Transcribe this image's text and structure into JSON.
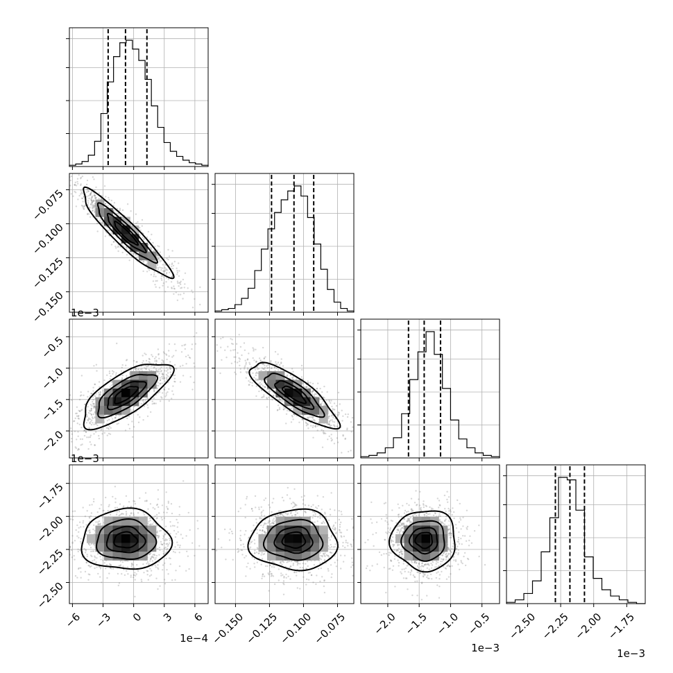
{
  "chart_data": {
    "type": "corner",
    "n_params": 4,
    "grid": true,
    "parameters": [
      {
        "range": [
          -0.00063,
          0.00073
        ],
        "ticks": [
          -0.0006,
          -0.0003,
          0,
          0.0003,
          0.0006
        ],
        "tick_labels": [
          "−6",
          "−3",
          "0",
          "3",
          "6"
        ],
        "offset_text": "1e−4",
        "mean": -8e-05,
        "sd": 0.00021,
        "quantiles": [
          -0.00025,
          -8e-05,
          0.00013
        ],
        "hist": [
          1,
          2,
          4,
          9,
          20,
          42,
          67,
          87,
          98,
          100,
          93,
          84,
          69,
          48,
          31,
          19,
          12,
          8,
          5,
          3,
          2,
          1
        ]
      },
      {
        "range": [
          -0.165,
          -0.063
        ],
        "ticks": [
          -0.15,
          -0.125,
          -0.1,
          -0.075
        ],
        "tick_labels": [
          "−0.150",
          "−0.125",
          "−0.100",
          "−0.075"
        ],
        "offset_text": "",
        "mean": -0.107,
        "sd": 0.0155,
        "quantiles": [
          -0.1235,
          -0.107,
          -0.0925
        ],
        "hist": [
          1,
          2,
          3,
          6,
          11,
          19,
          33,
          50,
          66,
          79,
          89,
          96,
          100,
          92,
          75,
          54,
          34,
          18,
          8,
          3,
          1
        ]
      },
      {
        "range": [
          -0.00243,
          -0.00022
        ],
        "ticks": [
          -0.002,
          -0.0015,
          -0.001,
          -0.0005
        ],
        "tick_labels": [
          "−2.0",
          "−1.5",
          "−1.0",
          "−0.5"
        ],
        "offset_text": "1e−3",
        "mean": -0.00142,
        "sd": 0.00025,
        "quantiles": [
          -0.00167,
          -0.00142,
          -0.00116
        ],
        "hist": [
          1,
          2,
          4,
          8,
          16,
          35,
          62,
          84,
          100,
          82,
          55,
          30,
          15,
          8,
          4,
          2,
          1
        ]
      },
      {
        "range": [
          -0.00266,
          -0.00161
        ],
        "ticks": [
          -0.0025,
          -0.00225,
          -0.002,
          -0.00175
        ],
        "tick_labels": [
          "−2.50",
          "−2.25",
          "−2.00",
          "−1.75"
        ],
        "offset_text": "1e−3",
        "mean": -0.00218,
        "sd": 0.00011,
        "quantiles": [
          -0.00229,
          -0.00218,
          -0.00207
        ],
        "hist": [
          1,
          3,
          8,
          18,
          41,
          68,
          100,
          98,
          74,
          37,
          20,
          11,
          6,
          3,
          1,
          0
        ]
      }
    ],
    "correlations": [
      {
        "row": 1,
        "col": 0,
        "rho": -0.93
      },
      {
        "row": 2,
        "col": 0,
        "rho": 0.72
      },
      {
        "row": 2,
        "col": 1,
        "rho": -0.82
      },
      {
        "row": 3,
        "col": 0,
        "rho": 0.0
      },
      {
        "row": 3,
        "col": 1,
        "rho": 0.0
      },
      {
        "row": 3,
        "col": 2,
        "rho": 0.0
      }
    ],
    "contour_levels_sigma": [
      0.5,
      1.0,
      1.5,
      2.0
    ],
    "xlabel": "",
    "ylabel": "",
    "title": ""
  }
}
